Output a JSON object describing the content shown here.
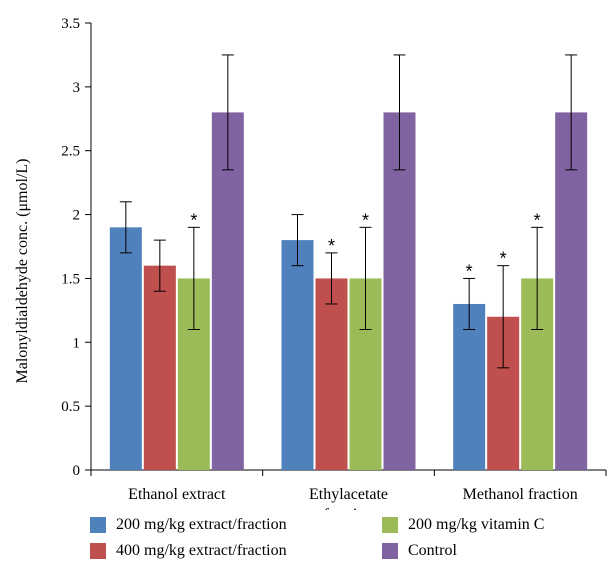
{
  "chart_data": {
    "type": "bar",
    "categories": [
      [
        "Ethanol extract"
      ],
      [
        "Ethylacetate",
        "fraction"
      ],
      [
        "Methanol fraction"
      ]
    ],
    "ylabel": "Malonyldialdehyde conc. (μmol/L)",
    "ylim": [
      0,
      3.5
    ],
    "yticks": [
      "0",
      "0.5",
      "1",
      "1.5",
      "2",
      "2.5",
      "3",
      "3.5"
    ],
    "series": [
      {
        "name": "200 mg/kg extract/fraction",
        "color": "#4f81bd",
        "values": [
          1.9,
          1.8,
          1.3
        ],
        "errors": [
          0.2,
          0.2,
          0.2
        ],
        "significant": [
          false,
          false,
          true
        ]
      },
      {
        "name": "400 mg/kg extract/fraction",
        "color": "#c0504d",
        "values": [
          1.6,
          1.5,
          1.2
        ],
        "errors": [
          0.2,
          0.2,
          0.4
        ],
        "significant": [
          false,
          true,
          true
        ]
      },
      {
        "name": "200 mg/kg vitamin C",
        "color": "#9bbb59",
        "values": [
          1.5,
          1.5,
          1.5
        ],
        "errors": [
          0.4,
          0.4,
          0.4
        ],
        "significant": [
          true,
          true,
          true
        ]
      },
      {
        "name": "Control",
        "color": "#8064a2",
        "values": [
          2.8,
          2.8,
          2.8
        ],
        "errors": [
          0.45,
          0.45,
          0.45
        ],
        "significant": [
          false,
          false,
          false
        ]
      }
    ],
    "significance_marker": "*",
    "legend_position": "bottom",
    "grid": false
  }
}
